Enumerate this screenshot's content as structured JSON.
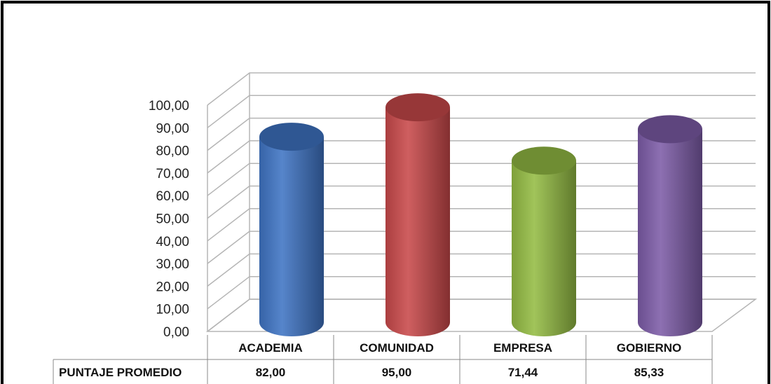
{
  "chart_data": {
    "type": "bar",
    "style": "3d-cylinder",
    "categories": [
      "ACADEMIA",
      "COMUNIDAD",
      "EMPRESA",
      "GOBIERNO"
    ],
    "series": [
      {
        "name": "PUNTAJE PROMEDIO",
        "values": [
          82.0,
          95.0,
          71.44,
          85.33
        ]
      }
    ],
    "value_labels": [
      "82,00",
      "95,00",
      "71,44",
      "85,33"
    ],
    "yticks": [
      "0,00",
      "10,00",
      "20,00",
      "30,00",
      "40,00",
      "50,00",
      "60,00",
      "70,00",
      "80,00",
      "90,00",
      "100,00"
    ],
    "ylim": [
      0,
      100
    ],
    "grid": true,
    "data_table": true,
    "colors": [
      "#3f74c4",
      "#c9494a",
      "#94bc44",
      "#7d5ca8"
    ],
    "title": "",
    "xlabel": "",
    "ylabel": ""
  }
}
